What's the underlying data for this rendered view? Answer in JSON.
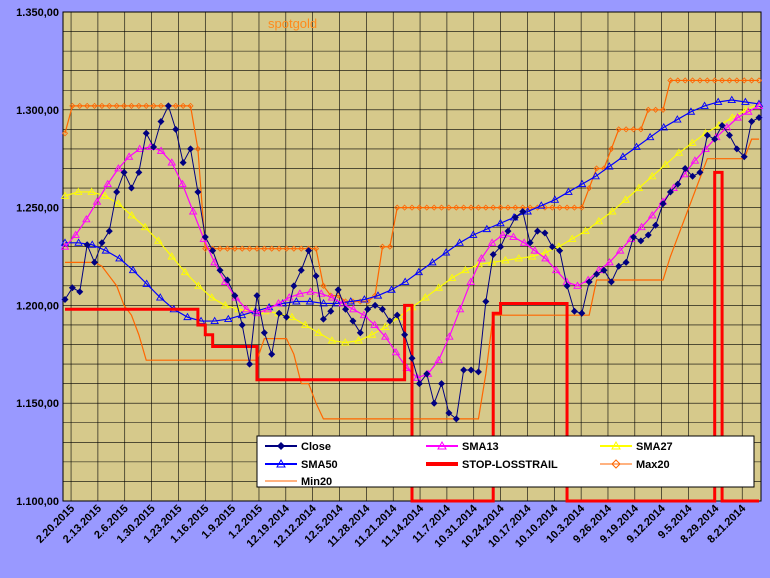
{
  "chart_data": {
    "type": "line",
    "title": "spotgold",
    "ylim": [
      1100,
      1350
    ],
    "y_ticks": [
      "1.100,00",
      "1.150,00",
      "1.200,00",
      "1.250,00",
      "1.300,00",
      "1.350,00"
    ],
    "y_tick_values": [
      1100,
      1150,
      1200,
      1250,
      1300,
      1350
    ],
    "x_ticks": [
      "2.20.2015",
      "2.13.2015",
      "2.6.2015",
      "1.30.2015",
      "1.23.2015",
      "1.16.2015",
      "1.9.2015",
      "1.2.2015",
      "12.19.2014",
      "12.12.2014",
      "12.5.2014",
      "11.28.2014",
      "11.21.2014",
      "11.14.2014",
      "11.7.2014",
      "10.31.2014",
      "10.24.2014",
      "10.17.2014",
      "10.10.2014",
      "10.3.2014",
      "9.26.2014",
      "9.19.2014",
      "9.12.2014",
      "9.5.2014",
      "8.29.2014",
      "8.21.2014"
    ],
    "grid": true,
    "legend_position": "bottom-right",
    "series": [
      {
        "name": "Close",
        "color": "#000080",
        "marker": "diamond",
        "values": [
          1203,
          1209,
          1207,
          1231,
          1222,
          1232,
          1238,
          1258,
          1268,
          1260,
          1268,
          1288,
          1281,
          1294,
          1302,
          1290,
          1273,
          1280,
          1258,
          1235,
          1228,
          1218,
          1213,
          1205,
          1190,
          1170,
          1205,
          1186,
          1175,
          1196,
          1194,
          1210,
          1218,
          1228,
          1215,
          1193,
          1197,
          1208,
          1198,
          1192,
          1186,
          1198,
          1200,
          1198,
          1192,
          1195,
          1185,
          1173,
          1160,
          1165,
          1150,
          1160,
          1145,
          1142,
          1167,
          1167,
          1166,
          1202,
          1226,
          1230,
          1238,
          1245,
          1248,
          1232,
          1238,
          1237,
          1230,
          1228,
          1210,
          1197,
          1196,
          1212,
          1216,
          1218,
          1212,
          1220,
          1222,
          1235,
          1233,
          1236,
          1241,
          1252,
          1258,
          1262,
          1270,
          1266,
          1268,
          1287,
          1285,
          1292,
          1287,
          1280,
          1276,
          1294,
          1296
        ]
      },
      {
        "name": "SMA13",
        "color": "#ff00ff",
        "marker": "triangle",
        "values": [
          1230,
          1236,
          1244,
          1253,
          1262,
          1270,
          1276,
          1280,
          1281,
          1279,
          1273,
          1262,
          1248,
          1234,
          1222,
          1212,
          1204,
          1198,
          1196,
          1198,
          1201,
          1204,
          1206,
          1207,
          1206,
          1204,
          1201,
          1198,
          1195,
          1190,
          1184,
          1176,
          1168,
          1163,
          1165,
          1172,
          1184,
          1198,
          1212,
          1224,
          1232,
          1236,
          1235,
          1232,
          1228,
          1224,
          1218,
          1212,
          1210,
          1213,
          1218,
          1222,
          1228,
          1234,
          1240,
          1246,
          1253,
          1260,
          1267,
          1274,
          1280,
          1286,
          1291,
          1296,
          1299,
          1302
        ]
      },
      {
        "name": "SMA27",
        "color": "#ffff00",
        "marker": "triangle",
        "values": [
          1256,
          1258,
          1258,
          1256,
          1252,
          1246,
          1240,
          1233,
          1225,
          1217,
          1210,
          1204,
          1200,
          1198,
          1197,
          1197,
          1196,
          1194,
          1190,
          1186,
          1182,
          1181,
          1182,
          1185,
          1189,
          1194,
          1199,
          1204,
          1209,
          1214,
          1218,
          1221,
          1222,
          1223,
          1224,
          1225,
          1227,
          1230,
          1234,
          1238,
          1243,
          1248,
          1254,
          1260,
          1266,
          1272,
          1278,
          1283,
          1288,
          1292,
          1296,
          1300,
          1303
        ]
      },
      {
        "name": "SMA50",
        "color": "#0000ff",
        "marker": "triangle",
        "values": [
          1232,
          1232,
          1231,
          1228,
          1224,
          1218,
          1211,
          1204,
          1198,
          1194,
          1192,
          1192,
          1193,
          1195,
          1197,
          1199,
          1201,
          1202,
          1202,
          1201,
          1201,
          1202,
          1203,
          1205,
          1208,
          1212,
          1217,
          1222,
          1227,
          1232,
          1236,
          1239,
          1242,
          1245,
          1248,
          1251,
          1254,
          1258,
          1262,
          1266,
          1271,
          1276,
          1281,
          1286,
          1291,
          1295,
          1299,
          1302,
          1304,
          1305,
          1304,
          1303
        ]
      },
      {
        "name": "STOP-LOSSTRAIL",
        "color": "#ff0000",
        "marker": "none",
        "values": [
          1198,
          1198,
          1198,
          1198,
          1198,
          1198,
          1198,
          1198,
          1198,
          1198,
          1198,
          1198,
          1198,
          1198,
          1198,
          1198,
          1198,
          1198,
          1190,
          1185,
          1179,
          1179,
          1179,
          1179,
          1179,
          1179,
          1162,
          1162,
          1162,
          1162,
          1162,
          1162,
          1162,
          1162,
          1162,
          1162,
          1162,
          1162,
          1162,
          1162,
          1162,
          1162,
          1162,
          1162,
          1162,
          1162,
          1200,
          1100,
          1100,
          1100,
          1100,
          1100,
          1100,
          1100,
          1100,
          1100,
          1100,
          1100,
          1196,
          1201,
          1201,
          1201,
          1201,
          1201,
          1201,
          1201,
          1201,
          1201,
          1100,
          1100,
          1100,
          1100,
          1100,
          1100,
          1100,
          1100,
          1100,
          1100,
          1100,
          1100,
          1100,
          1100,
          1100,
          1100,
          1100,
          1100,
          1100,
          1100,
          1268,
          1100,
          1100,
          1100,
          1100,
          1100,
          1100
        ]
      },
      {
        "name": "Max20",
        "color": "#ff6600",
        "marker": "diamond-open",
        "values": [
          1288,
          1302,
          1302,
          1302,
          1302,
          1302,
          1302,
          1302,
          1302,
          1302,
          1302,
          1302,
          1302,
          1302,
          1302,
          1302,
          1302,
          1302,
          1280,
          1229,
          1229,
          1229,
          1229,
          1229,
          1229,
          1229,
          1229,
          1229,
          1229,
          1229,
          1229,
          1229,
          1229,
          1229,
          1229,
          1210,
          1205,
          1205,
          1202,
          1202,
          1202,
          1202,
          1205,
          1230,
          1230,
          1250,
          1250,
          1250,
          1250,
          1250,
          1250,
          1250,
          1250,
          1250,
          1250,
          1250,
          1250,
          1250,
          1250,
          1250,
          1250,
          1250,
          1250,
          1250,
          1250,
          1250,
          1250,
          1250,
          1250,
          1250,
          1250,
          1260,
          1270,
          1270,
          1280,
          1290,
          1290,
          1290,
          1290,
          1300,
          1300,
          1300,
          1315,
          1315,
          1315,
          1315,
          1315,
          1315,
          1315,
          1315,
          1315,
          1315,
          1315,
          1315,
          1315
        ]
      },
      {
        "name": "Min20",
        "color": "#ff6600",
        "marker": "none",
        "values": [
          1222,
          1222,
          1222,
          1222,
          1222,
          1220,
          1215,
          1210,
          1200,
          1195,
          1185,
          1172,
          1172,
          1172,
          1172,
          1172,
          1172,
          1172,
          1172,
          1172,
          1172,
          1172,
          1172,
          1172,
          1172,
          1172,
          1172,
          1183,
          1183,
          1183,
          1183,
          1175,
          1160,
          1160,
          1150,
          1142,
          1142,
          1142,
          1142,
          1142,
          1142,
          1142,
          1142,
          1142,
          1142,
          1142,
          1142,
          1142,
          1142,
          1142,
          1142,
          1142,
          1142,
          1142,
          1142,
          1142,
          1142,
          1165,
          1195,
          1195,
          1195,
          1195,
          1195,
          1195,
          1195,
          1195,
          1195,
          1195,
          1195,
          1195,
          1195,
          1195,
          1213,
          1213,
          1213,
          1213,
          1213,
          1213,
          1213,
          1213,
          1213,
          1213,
          1225,
          1235,
          1245,
          1255,
          1265,
          1275,
          1275,
          1275,
          1275,
          1275,
          1275,
          1285,
          1285
        ]
      }
    ]
  }
}
